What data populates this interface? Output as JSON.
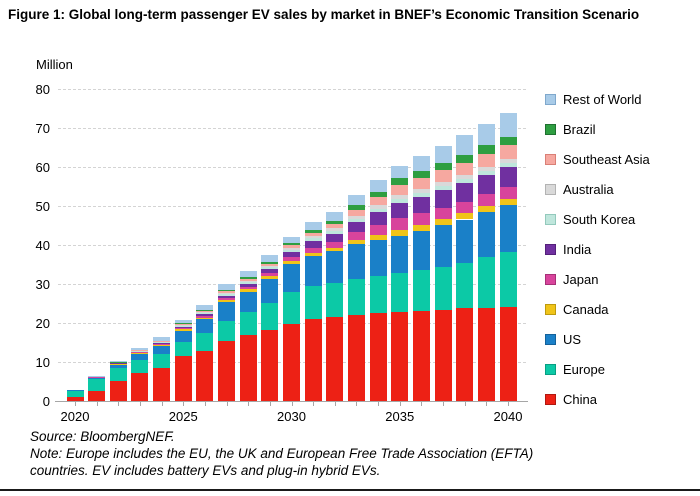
{
  "figure": {
    "title": "Figure 1: Global long-term passenger EV sales by market in BNEF’s Economic Transition Scenario"
  },
  "chart_data": {
    "type": "bar",
    "stacked": true,
    "title": "Global long-term passenger EV sales by market in BNEF's Economic Transition Scenario",
    "unit_label": "Million",
    "xlabel": "",
    "ylabel": "Million",
    "ylim": [
      0,
      80
    ],
    "ytick_interval": 10,
    "grid": true,
    "legend_position": "right",
    "x": [
      2020,
      2021,
      2022,
      2023,
      2024,
      2025,
      2026,
      2027,
      2028,
      2029,
      2030,
      2031,
      2032,
      2033,
      2034,
      2035,
      2036,
      2037,
      2038,
      2039,
      2040
    ],
    "x_axis_tick_labels": [
      "2020",
      "2025",
      "2030",
      "2035",
      "2040"
    ],
    "series": [
      {
        "name": "China",
        "color": "#ed2115",
        "border": "#b01810",
        "values": [
          1.2,
          2.8,
          5.4,
          7.5,
          8.6,
          11.8,
          13.2,
          15.6,
          17.3,
          18.5,
          20.1,
          21.3,
          21.8,
          22.3,
          22.8,
          23.1,
          23.4,
          23.7,
          24.0,
          24.2,
          24.4
        ]
      },
      {
        "name": "Europe",
        "color": "#0cc9a6",
        "border": "#089e83",
        "values": [
          1.7,
          3.0,
          3.3,
          3.4,
          3.8,
          3.5,
          4.4,
          5.3,
          5.9,
          6.9,
          8.1,
          8.4,
          8.7,
          9.3,
          9.6,
          9.9,
          10.4,
          11.0,
          11.7,
          12.9,
          14.1
        ]
      },
      {
        "name": "US",
        "color": "#1a80c8",
        "border": "#14619a",
        "values": [
          0.2,
          0.4,
          0.9,
          1.5,
          1.9,
          3.0,
          3.6,
          4.7,
          5.1,
          6.2,
          7.3,
          7.8,
          8.1,
          8.9,
          9.2,
          9.6,
          10.1,
          10.6,
          11.1,
          11.6,
          12.0
        ]
      },
      {
        "name": "Canada",
        "color": "#f0c419",
        "border": "#bd9a0f",
        "values": [
          0,
          0.05,
          0.1,
          0.2,
          0.3,
          0.35,
          0.4,
          0.5,
          0.6,
          0.65,
          0.7,
          0.8,
          0.9,
          1.1,
          1.3,
          1.5,
          1.5,
          1.55,
          1.55,
          1.6,
          1.6
        ]
      },
      {
        "name": "Japan",
        "color": "#d8449c",
        "border": "#a63077",
        "values": [
          0,
          0.05,
          0.15,
          0.2,
          0.3,
          0.4,
          0.5,
          0.6,
          0.7,
          0.85,
          1.0,
          1.3,
          1.5,
          2.0,
          2.5,
          3.0,
          3.0,
          3.0,
          3.0,
          3.0,
          3.0
        ]
      },
      {
        "name": "India",
        "color": "#7030a0",
        "border": "#54207a",
        "values": [
          0,
          0,
          0.05,
          0.1,
          0.2,
          0.3,
          0.4,
          0.55,
          0.7,
          0.9,
          1.3,
          1.7,
          2.1,
          2.6,
          3.2,
          3.85,
          4.2,
          4.5,
          4.8,
          5.0,
          5.2
        ]
      },
      {
        "name": "South Korea",
        "color": "#bfe6dc",
        "border": "#93c9bc",
        "values": [
          0,
          0.05,
          0.1,
          0.15,
          0.2,
          0.25,
          0.3,
          0.4,
          0.45,
          0.5,
          0.6,
          0.7,
          0.75,
          0.85,
          1.0,
          1.1,
          1.05,
          1.05,
          1.0,
          1.0,
          1.0
        ]
      },
      {
        "name": "Australia",
        "color": "#d9d9d9",
        "border": "#b3b3b3",
        "values": [
          0,
          0,
          0.05,
          0.1,
          0.15,
          0.2,
          0.25,
          0.3,
          0.35,
          0.4,
          0.45,
          0.55,
          0.65,
          0.75,
          0.9,
          1.0,
          1.0,
          1.0,
          1.0,
          1.0,
          1.0
        ]
      },
      {
        "name": "Southeast Asia",
        "color": "#f6a8a0",
        "border": "#d97f76",
        "values": [
          0,
          0,
          0.05,
          0.1,
          0.15,
          0.2,
          0.3,
          0.4,
          0.5,
          0.55,
          0.6,
          0.9,
          1.1,
          1.5,
          2.0,
          2.6,
          2.8,
          3.0,
          3.2,
          3.4,
          3.5
        ]
      },
      {
        "name": "Brazil",
        "color": "#2e9e41",
        "border": "#1f7030",
        "values": [
          0,
          0,
          0.05,
          0.1,
          0.15,
          0.2,
          0.3,
          0.4,
          0.45,
          0.5,
          0.5,
          0.7,
          0.8,
          1.2,
          1.45,
          1.7,
          1.8,
          1.9,
          2.0,
          2.1,
          2.2
        ]
      },
      {
        "name": "Rest of World",
        "color": "#a8cbe8",
        "border": "#7fa8cc",
        "values": [
          0,
          0.1,
          0.3,
          0.5,
          0.85,
          0.9,
          1.1,
          1.5,
          1.6,
          1.7,
          1.7,
          2.0,
          2.2,
          2.7,
          3.0,
          3.2,
          3.9,
          4.4,
          5.0,
          5.5,
          6.0
        ]
      }
    ]
  },
  "footer": {
    "source": "Source: BloombergNEF.",
    "note": "Note: Europe includes the EU, the UK and European Free Trade Association (EFTA) countries. EV includes battery EVs and plug-in hybrid EVs."
  }
}
